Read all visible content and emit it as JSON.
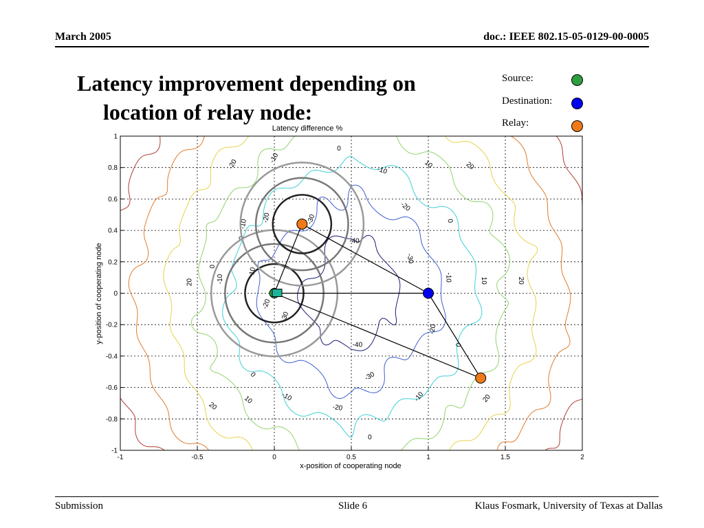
{
  "header": {
    "date": "March 2005",
    "doc_id": "doc.: IEEE 802.15-05-0129-00-0005"
  },
  "slide_title": {
    "line1": "Latency improvement depending on",
    "line2": "location of relay node:"
  },
  "legend": [
    {
      "label": "Source:",
      "color": "#2e9e3e"
    },
    {
      "label": "Destination:",
      "color": "#0000ee"
    },
    {
      "label": "Relay:",
      "color": "#f07a1a"
    }
  ],
  "chart_data": {
    "type": "contour",
    "title": "Latency difference %",
    "xlabel": "x-position of cooperating node",
    "ylabel": "y-position of cooperating node",
    "xlim": [
      -1,
      2
    ],
    "ylim": [
      -1,
      1
    ],
    "grid": true,
    "xticks": [
      "-1",
      "-0.5",
      "0",
      "0.5",
      "1",
      "1.5",
      "2"
    ],
    "yticks": [
      "1",
      "0.8",
      "0.6",
      "0.4",
      "0.2",
      "0",
      "-0.2",
      "-0.4",
      "-0.6",
      "-0.8",
      "-1"
    ],
    "contour_levels": [
      {
        "level": 20,
        "color": "#b03a2e",
        "label_text": "20"
      },
      {
        "level": 10,
        "color": "#e07a2a",
        "label_text": "10"
      },
      {
        "level": 0,
        "color": "#e6d24a",
        "label_text": "0"
      },
      {
        "level": -10,
        "color": "#8fd36b",
        "label_text": "-10"
      },
      {
        "level": -20,
        "color": "#3ccfd6",
        "label_text": "-20"
      },
      {
        "level": -30,
        "color": "#3c5fd0",
        "label_text": "-30"
      },
      {
        "level": -40,
        "color": "#1a1a70",
        "label_text": "-40"
      }
    ],
    "contour_labels": [
      {
        "text": "0",
        "x": 0.42,
        "y": 0.92,
        "rot": 0
      },
      {
        "text": "-10",
        "x": 0.0,
        "y": 0.86,
        "rot": -60
      },
      {
        "text": "-20",
        "x": -0.27,
        "y": 0.82,
        "rot": -60
      },
      {
        "text": "-10",
        "x": 0.7,
        "y": 0.78,
        "rot": 20
      },
      {
        "text": "10",
        "x": 1.0,
        "y": 0.82,
        "rot": 40
      },
      {
        "text": "20",
        "x": 1.27,
        "y": 0.81,
        "rot": 40
      },
      {
        "text": "-20",
        "x": 0.85,
        "y": 0.55,
        "rot": 40
      },
      {
        "text": "0",
        "x": 1.14,
        "y": 0.46,
        "rot": 80
      },
      {
        "text": "-40",
        "x": 0.52,
        "y": 0.33,
        "rot": 0
      },
      {
        "text": "-30",
        "x": 0.88,
        "y": 0.22,
        "rot": 80
      },
      {
        "text": "-10",
        "x": 1.13,
        "y": 0.1,
        "rot": 90
      },
      {
        "text": "10",
        "x": 1.36,
        "y": 0.08,
        "rot": 90
      },
      {
        "text": "20",
        "x": 1.6,
        "y": 0.08,
        "rot": 90
      },
      {
        "text": "-20",
        "x": -0.05,
        "y": 0.48,
        "rot": -80
      },
      {
        "text": "-10",
        "x": -0.2,
        "y": 0.44,
        "rot": -80
      },
      {
        "text": "-30",
        "x": 0.24,
        "y": 0.47,
        "rot": -70
      },
      {
        "text": "0",
        "x": -0.21,
        "y": 0.35,
        "rot": -80
      },
      {
        "text": "0",
        "x": -0.4,
        "y": 0.17,
        "rot": -90
      },
      {
        "text": "-10",
        "x": -0.35,
        "y": 0.09,
        "rot": -90
      },
      {
        "text": "10",
        "x": -0.14,
        "y": 0.14,
        "rot": -80
      },
      {
        "text": "-20",
        "x": -0.05,
        "y": -0.07,
        "rot": -70
      },
      {
        "text": "-30",
        "x": 0.07,
        "y": -0.15,
        "rot": -70
      },
      {
        "text": "20",
        "x": -0.55,
        "y": 0.07,
        "rot": -90
      },
      {
        "text": "-40",
        "x": 0.54,
        "y": -0.33,
        "rot": 0
      },
      {
        "text": "0",
        "x": 1.2,
        "y": -0.33,
        "rot": -80
      },
      {
        "text": "-20",
        "x": 1.03,
        "y": -0.23,
        "rot": -80
      },
      {
        "text": "-30",
        "x": 0.62,
        "y": -0.53,
        "rot": -30
      },
      {
        "text": "-10",
        "x": 0.94,
        "y": -0.66,
        "rot": -50
      },
      {
        "text": "20",
        "x": 1.38,
        "y": -0.67,
        "rot": -50
      },
      {
        "text": "0",
        "x": -0.14,
        "y": -0.52,
        "rot": 50
      },
      {
        "text": "10",
        "x": -0.17,
        "y": -0.68,
        "rot": 40
      },
      {
        "text": "-10",
        "x": 0.08,
        "y": -0.66,
        "rot": 30
      },
      {
        "text": "20",
        "x": -0.4,
        "y": -0.72,
        "rot": 40
      },
      {
        "text": "-20",
        "x": 0.41,
        "y": -0.73,
        "rot": 10
      },
      {
        "text": "0",
        "x": 0.62,
        "y": -0.92,
        "rot": 0
      }
    ],
    "nodes": {
      "source": {
        "x": 0.0,
        "y": 0.0
      },
      "destination": {
        "x": 1.0,
        "y": 0.0
      },
      "relays": [
        {
          "x": 0.18,
          "y": 0.44
        },
        {
          "x": 1.34,
          "y": -0.54
        }
      ]
    },
    "range_circles": [
      {
        "cx": 0.0,
        "cy": 0.0,
        "r": 0.19,
        "color": "#222222"
      },
      {
        "cx": 0.0,
        "cy": 0.0,
        "r": 0.32,
        "color": "#777777"
      },
      {
        "cx": 0.0,
        "cy": 0.0,
        "r": 0.41,
        "color": "#999999"
      },
      {
        "cx": 0.18,
        "cy": 0.44,
        "r": 0.19,
        "color": "#222222"
      },
      {
        "cx": 0.18,
        "cy": 0.44,
        "r": 0.3,
        "color": "#777777"
      },
      {
        "cx": 0.18,
        "cy": 0.44,
        "r": 0.4,
        "color": "#999999"
      }
    ],
    "arrows": [
      {
        "from": [
          0.0,
          0.0
        ],
        "to": [
          1.0,
          0.0
        ]
      },
      {
        "from": [
          0.0,
          0.0
        ],
        "to": [
          0.18,
          0.44
        ]
      },
      {
        "from": [
          0.18,
          0.44
        ],
        "to": [
          1.0,
          0.0
        ]
      },
      {
        "from": [
          0.0,
          0.0
        ],
        "to": [
          1.34,
          -0.54
        ]
      },
      {
        "from": [
          1.0,
          0.0
        ],
        "to": [
          1.34,
          -0.54
        ]
      }
    ]
  },
  "footer": {
    "left": "Submission",
    "center": "Slide 6",
    "right": "Klaus Fosmark, University of Texas at Dallas"
  }
}
